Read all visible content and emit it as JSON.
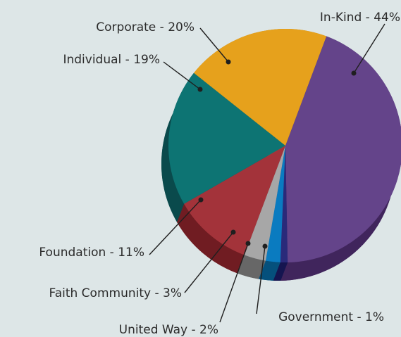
{
  "chart_data": {
    "type": "pie",
    "style": "3d",
    "slices": [
      {
        "label": "In-Kind - 44%",
        "value": 44,
        "color": "#64448a",
        "side_color": "#40255c"
      },
      {
        "label": "Government - 1%",
        "value": 1,
        "color": "#2a2a7a",
        "side_color": "#151550"
      },
      {
        "label": "United Way - 2%",
        "value": 2,
        "color": "#0a7bc0",
        "side_color": "#05507c"
      },
      {
        "label": "Faith Community - 3%",
        "value": 3,
        "color": "#a7a7a7",
        "side_color": "#676767"
      },
      {
        "label": "Foundation - 11%",
        "value": 11,
        "color": "#a3333a",
        "side_color": "#701c22"
      },
      {
        "label": "Individual - 19%",
        "value": 19,
        "color": "#0d7473",
        "side_color": "#0a4a4c"
      },
      {
        "label": "Corporate - 20%",
        "value": 20,
        "color": "#e6a11c",
        "side_color": "#a87512"
      }
    ],
    "legend": "none"
  }
}
